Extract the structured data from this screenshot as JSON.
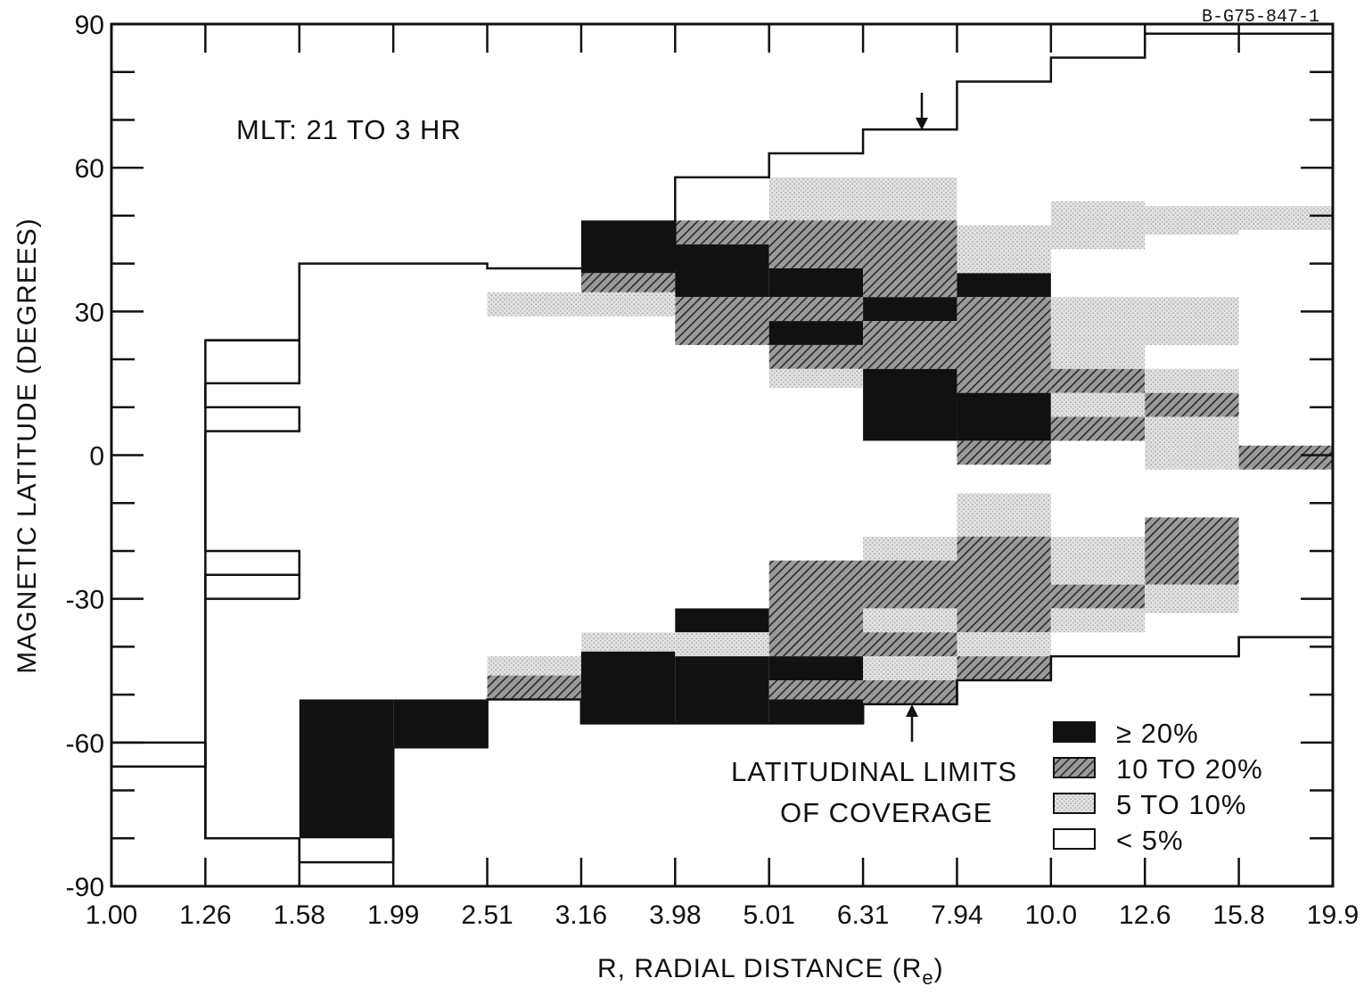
{
  "figure_id": "B-G75-847-1",
  "chart_data": {
    "type": "heatmap",
    "title": "",
    "annotation_mlt": "MLT: 21 TO 3 HR",
    "xlabel": "R, RADIAL DISTANCE (R",
    "xlabel_subscript": "e",
    "xlabel_close": ")",
    "ylabel": "MAGNETIC LATITUDE (DEGREES)",
    "x_ticks": [
      "1.00",
      "1.26",
      "1.58",
      "1.99",
      "2.51",
      "3.16",
      "3.98",
      "5.01",
      "6.31",
      "7.94",
      "10.0",
      "12.6",
      "15.8",
      "19.9"
    ],
    "y_ticks": [
      90,
      60,
      30,
      0,
      -30,
      -60,
      -90
    ],
    "ylim": [
      -90,
      90
    ],
    "x_scale": "log",
    "coverage_label_line1": "LATITUDINAL LIMITS",
    "coverage_label_line2": "OF COVERAGE",
    "legend": [
      {
        "key": "black",
        "label": "≥ 20%"
      },
      {
        "key": "hatch",
        "label": "10 TO 20%"
      },
      {
        "key": "dots",
        "label": "5 TO 10%"
      },
      {
        "key": "white",
        "label": "< 5%"
      }
    ],
    "cells": [
      {
        "x0": 3.16,
        "x1": 3.98,
        "y0": 38,
        "y1": 49,
        "c": "black"
      },
      {
        "x0": 3.16,
        "x1": 3.98,
        "y0": 34,
        "y1": 38,
        "c": "hatch"
      },
      {
        "x0": 3.98,
        "x1": 5.01,
        "y0": 44,
        "y1": 49,
        "c": "hatch"
      },
      {
        "x0": 3.98,
        "x1": 5.01,
        "y0": 33,
        "y1": 44,
        "c": "black"
      },
      {
        "x0": 3.98,
        "x1": 5.01,
        "y0": 23,
        "y1": 33,
        "c": "hatch"
      },
      {
        "x0": 2.51,
        "x1": 3.16,
        "y0": 29,
        "y1": 34,
        "c": "dots"
      },
      {
        "x0": 3.16,
        "x1": 3.98,
        "y0": 29,
        "y1": 34,
        "c": "dots"
      },
      {
        "x0": 5.01,
        "x1": 6.31,
        "y0": 49,
        "y1": 58,
        "c": "dots"
      },
      {
        "x0": 5.01,
        "x1": 6.31,
        "y0": 39,
        "y1": 49,
        "c": "hatch"
      },
      {
        "x0": 5.01,
        "x1": 6.31,
        "y0": 33,
        "y1": 39,
        "c": "black"
      },
      {
        "x0": 5.01,
        "x1": 6.31,
        "y0": 28,
        "y1": 33,
        "c": "hatch"
      },
      {
        "x0": 5.01,
        "x1": 6.31,
        "y0": 23,
        "y1": 28,
        "c": "black"
      },
      {
        "x0": 5.01,
        "x1": 6.31,
        "y0": 18,
        "y1": 23,
        "c": "hatch"
      },
      {
        "x0": 5.01,
        "x1": 6.31,
        "y0": 14,
        "y1": 18,
        "c": "dots"
      },
      {
        "x0": 6.31,
        "x1": 7.94,
        "y0": 49,
        "y1": 58,
        "c": "dots"
      },
      {
        "x0": 6.31,
        "x1": 7.94,
        "y0": 33,
        "y1": 49,
        "c": "hatch"
      },
      {
        "x0": 6.31,
        "x1": 7.94,
        "y0": 28,
        "y1": 33,
        "c": "black"
      },
      {
        "x0": 6.31,
        "x1": 7.94,
        "y0": 18,
        "y1": 28,
        "c": "hatch"
      },
      {
        "x0": 6.31,
        "x1": 7.94,
        "y0": 3,
        "y1": 18,
        "c": "black"
      },
      {
        "x0": 7.94,
        "x1": 10.0,
        "y0": 38,
        "y1": 48,
        "c": "dots"
      },
      {
        "x0": 7.94,
        "x1": 10.0,
        "y0": 33,
        "y1": 38,
        "c": "black"
      },
      {
        "x0": 7.94,
        "x1": 10.0,
        "y0": 13,
        "y1": 33,
        "c": "hatch"
      },
      {
        "x0": 7.94,
        "x1": 10.0,
        "y0": 3,
        "y1": 13,
        "c": "black"
      },
      {
        "x0": 7.94,
        "x1": 10.0,
        "y0": -2,
        "y1": 3,
        "c": "hatch"
      },
      {
        "x0": 10.0,
        "x1": 12.6,
        "y0": 43,
        "y1": 53,
        "c": "dots"
      },
      {
        "x0": 10.0,
        "x1": 12.6,
        "y0": 18,
        "y1": 33,
        "c": "dots"
      },
      {
        "x0": 10.0,
        "x1": 12.6,
        "y0": 13,
        "y1": 18,
        "c": "hatch"
      },
      {
        "x0": 10.0,
        "x1": 12.6,
        "y0": 8,
        "y1": 13,
        "c": "dots"
      },
      {
        "x0": 10.0,
        "x1": 12.6,
        "y0": 3,
        "y1": 8,
        "c": "hatch"
      },
      {
        "x0": 12.6,
        "x1": 15.8,
        "y0": 46,
        "y1": 52,
        "c": "dots"
      },
      {
        "x0": 12.6,
        "x1": 15.8,
        "y0": 23,
        "y1": 33,
        "c": "dots"
      },
      {
        "x0": 12.6,
        "x1": 15.8,
        "y0": 13,
        "y1": 18,
        "c": "dots"
      },
      {
        "x0": 12.6,
        "x1": 15.8,
        "y0": 8,
        "y1": 13,
        "c": "hatch"
      },
      {
        "x0": 12.6,
        "x1": 15.8,
        "y0": -3,
        "y1": 8,
        "c": "dots"
      },
      {
        "x0": 15.8,
        "x1": 19.9,
        "y0": 47,
        "y1": 52,
        "c": "dots"
      },
      {
        "x0": 15.8,
        "x1": 19.9,
        "y0": -3,
        "y1": 2,
        "c": "hatch"
      },
      {
        "x0": 1.58,
        "x1": 1.99,
        "y0": -80,
        "y1": -51,
        "c": "black"
      },
      {
        "x0": 1.99,
        "x1": 2.51,
        "y0": -61,
        "y1": -51,
        "c": "black"
      },
      {
        "x0": 2.51,
        "x1": 3.16,
        "y0": -46,
        "y1": -42,
        "c": "dots"
      },
      {
        "x0": 2.51,
        "x1": 3.16,
        "y0": -51,
        "y1": -46,
        "c": "hatch"
      },
      {
        "x0": 3.16,
        "x1": 3.98,
        "y0": -41,
        "y1": -37,
        "c": "dots"
      },
      {
        "x0": 3.16,
        "x1": 3.98,
        "y0": -56,
        "y1": -41,
        "c": "black"
      },
      {
        "x0": 3.98,
        "x1": 5.01,
        "y0": -37,
        "y1": -32,
        "c": "black"
      },
      {
        "x0": 3.98,
        "x1": 5.01,
        "y0": -42,
        "y1": -37,
        "c": "dots"
      },
      {
        "x0": 3.98,
        "x1": 5.01,
        "y0": -56,
        "y1": -42,
        "c": "black"
      },
      {
        "x0": 5.01,
        "x1": 6.31,
        "y0": -42,
        "y1": -22,
        "c": "hatch"
      },
      {
        "x0": 5.01,
        "x1": 6.31,
        "y0": -47,
        "y1": -42,
        "c": "black"
      },
      {
        "x0": 5.01,
        "x1": 6.31,
        "y0": -51,
        "y1": -47,
        "c": "hatch"
      },
      {
        "x0": 5.01,
        "x1": 6.31,
        "y0": -56,
        "y1": -51,
        "c": "black"
      },
      {
        "x0": 6.31,
        "x1": 7.94,
        "y0": -22,
        "y1": -17,
        "c": "dots"
      },
      {
        "x0": 6.31,
        "x1": 7.94,
        "y0": -32,
        "y1": -22,
        "c": "hatch"
      },
      {
        "x0": 6.31,
        "x1": 7.94,
        "y0": -37,
        "y1": -32,
        "c": "dots"
      },
      {
        "x0": 6.31,
        "x1": 7.94,
        "y0": -42,
        "y1": -37,
        "c": "hatch"
      },
      {
        "x0": 6.31,
        "x1": 7.94,
        "y0": -47,
        "y1": -42,
        "c": "dots"
      },
      {
        "x0": 6.31,
        "x1": 7.94,
        "y0": -52,
        "y1": -47,
        "c": "hatch"
      },
      {
        "x0": 7.94,
        "x1": 10.0,
        "y0": -17,
        "y1": -8,
        "c": "dots"
      },
      {
        "x0": 7.94,
        "x1": 10.0,
        "y0": -37,
        "y1": -17,
        "c": "hatch"
      },
      {
        "x0": 7.94,
        "x1": 10.0,
        "y0": -42,
        "y1": -37,
        "c": "dots"
      },
      {
        "x0": 7.94,
        "x1": 10.0,
        "y0": -47,
        "y1": -42,
        "c": "hatch"
      },
      {
        "x0": 10.0,
        "x1": 12.6,
        "y0": -27,
        "y1": -17,
        "c": "dots"
      },
      {
        "x0": 10.0,
        "x1": 12.6,
        "y0": -32,
        "y1": -27,
        "c": "hatch"
      },
      {
        "x0": 10.0,
        "x1": 12.6,
        "y0": -37,
        "y1": -32,
        "c": "dots"
      },
      {
        "x0": 12.6,
        "x1": 15.8,
        "y0": -27,
        "y1": -13,
        "c": "hatch"
      },
      {
        "x0": 12.6,
        "x1": 15.8,
        "y0": -33,
        "y1": -27,
        "c": "dots"
      }
    ],
    "upper_limit": [
      {
        "x0": 1.0,
        "x1": 1.26,
        "y": -65
      },
      {
        "x0": 1.26,
        "x1": 1.58,
        "y": 24
      },
      {
        "x0": 1.58,
        "x1": 2.51,
        "y": 40
      },
      {
        "x0": 2.51,
        "x1": 3.16,
        "y": 39
      },
      {
        "x0": 3.16,
        "x1": 3.98,
        "y": 39
      },
      {
        "x0": 3.98,
        "x1": 5.01,
        "y": 58
      },
      {
        "x0": 5.01,
        "x1": 6.31,
        "y": 63
      },
      {
        "x0": 6.31,
        "x1": 7.94,
        "y": 68
      },
      {
        "x0": 7.94,
        "x1": 10.0,
        "y": 78
      },
      {
        "x0": 10.0,
        "x1": 12.6,
        "y": 83
      },
      {
        "x0": 12.6,
        "x1": 19.9,
        "y": 88
      }
    ],
    "lower_limit": [
      {
        "x0": 1.0,
        "x1": 1.26,
        "y": -60
      },
      {
        "x0": 1.26,
        "x1": 1.58,
        "y": -80
      },
      {
        "x0": 1.58,
        "x1": 1.99,
        "y": -85
      },
      {
        "x0": 1.99,
        "x1": 2.51,
        "y": -61
      },
      {
        "x0": 2.51,
        "x1": 3.16,
        "y": -51
      },
      {
        "x0": 3.16,
        "x1": 6.31,
        "y": -56
      },
      {
        "x0": 6.31,
        "x1": 7.94,
        "y": -52
      },
      {
        "x0": 7.94,
        "x1": 10.0,
        "y": -47
      },
      {
        "x0": 10.0,
        "x1": 15.8,
        "y": -42
      },
      {
        "x0": 15.8,
        "x1": 19.9,
        "y": -38
      }
    ]
  }
}
